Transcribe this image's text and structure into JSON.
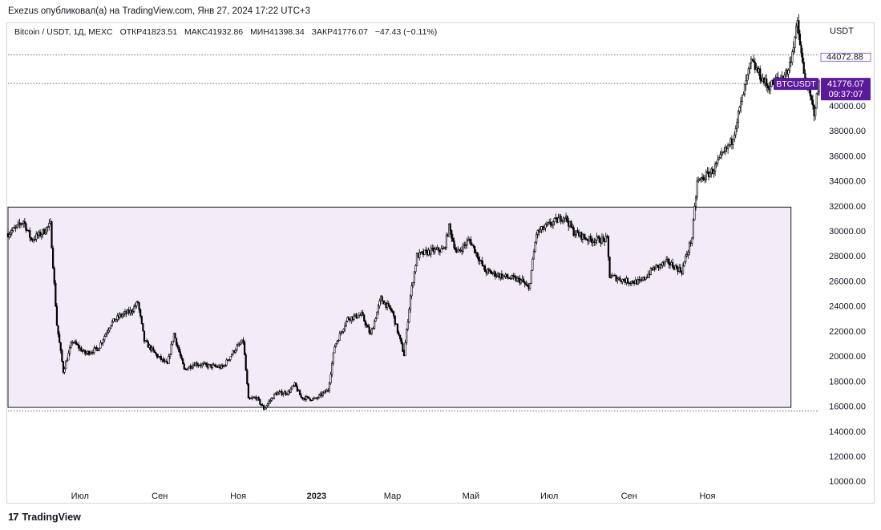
{
  "header": {
    "publisher_line": "Exezus опубликовал(а) на TradingView.com, Янв 27, 2024 17:22 UTC+3"
  },
  "legend": {
    "symbol": "Bitcoin / USDT, 1Д, MEXC",
    "open": "ОТКР41823.51",
    "high": "МАКС41932.86",
    "low": "МИН41398.34",
    "close": "ЗАКР41776.07",
    "change": "−47.43 (−0.11%)"
  },
  "price_axis": {
    "currency": "USDT",
    "ticker_tag": "BTCUSDT",
    "last_price": "41776.07",
    "countdown": "09:37:07",
    "top_price_partial": "44072.88"
  },
  "footer": {
    "brand": "TradingView",
    "logo": "17"
  },
  "colors": {
    "candle": "#000000",
    "box_fill": "#f3ecf8",
    "box_border": "#1a1a1a",
    "tag_bg": "#5b1a9a",
    "dotted_line": "#333333"
  },
  "chart_data": {
    "type": "candlestick",
    "symbol": "Bitcoin / USDT, 1Д, MEXC",
    "y_ticks": [
      10000,
      12000,
      14000,
      16000,
      18000,
      20000,
      22000,
      24000,
      26000,
      28000,
      30000,
      32000,
      34000,
      36000,
      38000,
      40000
    ],
    "y_tick_labels": [
      "10000.00",
      "12000.00",
      "14000.00",
      "16000.00",
      "18000.00",
      "20000.00",
      "22000.00",
      "24000.00",
      "26000.00",
      "28000.00",
      "30000.00",
      "32000.00",
      "34000.00",
      "36000.00",
      "38000.00",
      "40000.00"
    ],
    "x_ticks": [
      {
        "label": "Июл",
        "date": "2022-07-01",
        "bold": false
      },
      {
        "label": "Сен",
        "date": "2022-09-01",
        "bold": false
      },
      {
        "label": "Ноя",
        "date": "2022-11-01",
        "bold": false
      },
      {
        "label": "2023",
        "date": "2023-01-01",
        "bold": true
      },
      {
        "label": "Мар",
        "date": "2023-03-01",
        "bold": false
      },
      {
        "label": "Май",
        "date": "2023-05-01",
        "bold": false
      },
      {
        "label": "Июл",
        "date": "2023-07-01",
        "bold": false
      },
      {
        "label": "Сен",
        "date": "2023-09-01",
        "bold": false
      },
      {
        "label": "Ноя",
        "date": "2023-11-01",
        "bold": false
      }
    ],
    "x_range": [
      "2022-05-06",
      "2024-01-27"
    ],
    "y_range": [
      9500,
      45500
    ],
    "range_box": {
      "x_start": "2022-05-06",
      "x_end": "2024-01-05",
      "low": 15900,
      "high": 31900
    },
    "horizontal_levels": [
      44072.88,
      41776.07,
      15600
    ],
    "price_path": [
      {
        "date": "2022-05-06",
        "price": 29800
      },
      {
        "date": "2022-05-12",
        "price": 30200
      },
      {
        "date": "2022-05-18",
        "price": 30800
      },
      {
        "date": "2022-05-24",
        "price": 29300
      },
      {
        "date": "2022-06-01",
        "price": 29800
      },
      {
        "date": "2022-06-08",
        "price": 30500
      },
      {
        "date": "2022-06-13",
        "price": 22500
      },
      {
        "date": "2022-06-18",
        "price": 18800
      },
      {
        "date": "2022-06-25",
        "price": 21200
      },
      {
        "date": "2022-07-05",
        "price": 20200
      },
      {
        "date": "2022-07-15",
        "price": 20600
      },
      {
        "date": "2022-07-25",
        "price": 22600
      },
      {
        "date": "2022-08-01",
        "price": 23200
      },
      {
        "date": "2022-08-10",
        "price": 23600
      },
      {
        "date": "2022-08-15",
        "price": 24300
      },
      {
        "date": "2022-08-20",
        "price": 21200
      },
      {
        "date": "2022-08-30",
        "price": 20000
      },
      {
        "date": "2022-09-07",
        "price": 19300
      },
      {
        "date": "2022-09-12",
        "price": 21800
      },
      {
        "date": "2022-09-20",
        "price": 18900
      },
      {
        "date": "2022-09-28",
        "price": 19400
      },
      {
        "date": "2022-10-10",
        "price": 19200
      },
      {
        "date": "2022-10-20",
        "price": 19100
      },
      {
        "date": "2022-10-30",
        "price": 20600
      },
      {
        "date": "2022-11-05",
        "price": 21200
      },
      {
        "date": "2022-11-09",
        "price": 16500
      },
      {
        "date": "2022-11-15",
        "price": 16700
      },
      {
        "date": "2022-11-21",
        "price": 15800
      },
      {
        "date": "2022-11-30",
        "price": 17000
      },
      {
        "date": "2022-12-10",
        "price": 17100
      },
      {
        "date": "2022-12-15",
        "price": 17700
      },
      {
        "date": "2022-12-20",
        "price": 16700
      },
      {
        "date": "2022-12-31",
        "price": 16550
      },
      {
        "date": "2023-01-10",
        "price": 17300
      },
      {
        "date": "2023-01-15",
        "price": 20800
      },
      {
        "date": "2023-01-25",
        "price": 23000
      },
      {
        "date": "2023-02-05",
        "price": 23300
      },
      {
        "date": "2023-02-12",
        "price": 21700
      },
      {
        "date": "2023-02-20",
        "price": 24600
      },
      {
        "date": "2023-03-01",
        "price": 23500
      },
      {
        "date": "2023-03-10",
        "price": 20100
      },
      {
        "date": "2023-03-15",
        "price": 24800
      },
      {
        "date": "2023-03-20",
        "price": 28000
      },
      {
        "date": "2023-03-31",
        "price": 28400
      },
      {
        "date": "2023-04-10",
        "price": 28500
      },
      {
        "date": "2023-04-14",
        "price": 30300
      },
      {
        "date": "2023-04-20",
        "price": 28200
      },
      {
        "date": "2023-04-30",
        "price": 29300
      },
      {
        "date": "2023-05-12",
        "price": 26800
      },
      {
        "date": "2023-05-25",
        "price": 26400
      },
      {
        "date": "2023-06-10",
        "price": 26000
      },
      {
        "date": "2023-06-15",
        "price": 25300
      },
      {
        "date": "2023-06-21",
        "price": 29800
      },
      {
        "date": "2023-07-01",
        "price": 30500
      },
      {
        "date": "2023-07-13",
        "price": 31200
      },
      {
        "date": "2023-07-20",
        "price": 29900
      },
      {
        "date": "2023-08-01",
        "price": 29300
      },
      {
        "date": "2023-08-15",
        "price": 29300
      },
      {
        "date": "2023-08-17",
        "price": 26400
      },
      {
        "date": "2023-08-30",
        "price": 26000
      },
      {
        "date": "2023-09-10",
        "price": 25900
      },
      {
        "date": "2023-09-20",
        "price": 27000
      },
      {
        "date": "2023-10-01",
        "price": 27500
      },
      {
        "date": "2023-10-12",
        "price": 26800
      },
      {
        "date": "2023-10-20",
        "price": 29500
      },
      {
        "date": "2023-10-24",
        "price": 33900
      },
      {
        "date": "2023-11-05",
        "price": 34800
      },
      {
        "date": "2023-11-20",
        "price": 37200
      },
      {
        "date": "2023-12-05",
        "price": 43500
      },
      {
        "date": "2023-12-18",
        "price": 41500
      },
      {
        "date": "2024-01-03",
        "price": 42800
      },
      {
        "date": "2024-01-10",
        "price": 46500
      },
      {
        "date": "2024-01-15",
        "price": 42500
      },
      {
        "date": "2024-01-23",
        "price": 39500
      },
      {
        "date": "2024-01-27",
        "price": 41776
      }
    ]
  }
}
